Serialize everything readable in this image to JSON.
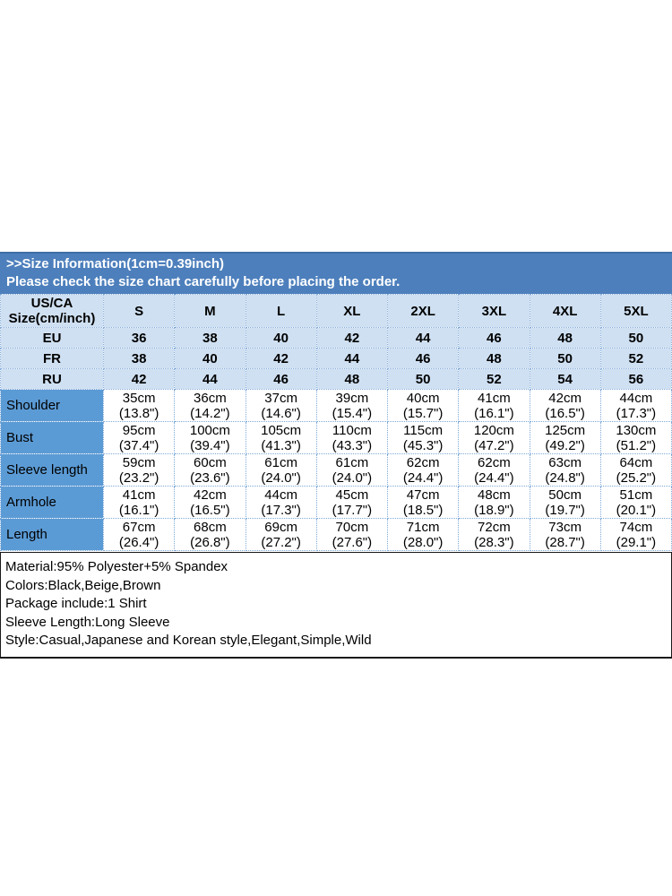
{
  "header": {
    "line1": ">>Size Information(1cm=0.39inch)",
    "line2": "Please check the size chart carefully before placing the order.",
    "bg_color": "#4d7fbc",
    "text_color": "#ffffff"
  },
  "size_table": {
    "corner_header": {
      "line1": "US/CA",
      "line2": "Size(cm/inch)"
    },
    "size_labels": [
      "S",
      "M",
      "L",
      "XL",
      "2XL",
      "3XL",
      "4XL",
      "5XL"
    ],
    "region_rows": [
      {
        "label": "EU",
        "values": [
          "36",
          "38",
          "40",
          "42",
          "44",
          "46",
          "48",
          "50"
        ]
      },
      {
        "label": "FR",
        "values": [
          "38",
          "40",
          "42",
          "44",
          "46",
          "48",
          "50",
          "52"
        ]
      },
      {
        "label": "RU",
        "values": [
          "42",
          "44",
          "46",
          "48",
          "50",
          "52",
          "54",
          "56"
        ]
      }
    ],
    "measurement_rows": [
      {
        "label": "Shoulder",
        "cells": [
          {
            "cm": "35cm",
            "inch": "(13.8\")"
          },
          {
            "cm": "36cm",
            "inch": "(14.2\")"
          },
          {
            "cm": "37cm",
            "inch": "(14.6\")"
          },
          {
            "cm": "39cm",
            "inch": "(15.4\")"
          },
          {
            "cm": "40cm",
            "inch": "(15.7\")"
          },
          {
            "cm": "41cm",
            "inch": "(16.1\")"
          },
          {
            "cm": "42cm",
            "inch": "(16.5\")"
          },
          {
            "cm": "44cm",
            "inch": "(17.3\")"
          }
        ]
      },
      {
        "label": "Bust",
        "cells": [
          {
            "cm": "95cm",
            "inch": "(37.4\")"
          },
          {
            "cm": "100cm",
            "inch": "(39.4\")"
          },
          {
            "cm": "105cm",
            "inch": "(41.3\")"
          },
          {
            "cm": "110cm",
            "inch": "(43.3\")"
          },
          {
            "cm": "115cm",
            "inch": "(45.3\")"
          },
          {
            "cm": "120cm",
            "inch": "(47.2\")"
          },
          {
            "cm": "125cm",
            "inch": "(49.2\")"
          },
          {
            "cm": "130cm",
            "inch": "(51.2\")"
          }
        ]
      },
      {
        "label": "Sleeve length",
        "cells": [
          {
            "cm": "59cm",
            "inch": "(23.2\")"
          },
          {
            "cm": "60cm",
            "inch": "(23.6\")"
          },
          {
            "cm": "61cm",
            "inch": "(24.0\")"
          },
          {
            "cm": "61cm",
            "inch": "(24.0\")"
          },
          {
            "cm": "62cm",
            "inch": "(24.4\")"
          },
          {
            "cm": "62cm",
            "inch": "(24.4\")"
          },
          {
            "cm": "63cm",
            "inch": "(24.8\")"
          },
          {
            "cm": "64cm",
            "inch": "(25.2\")"
          }
        ]
      },
      {
        "label": "Armhole",
        "cells": [
          {
            "cm": "41cm",
            "inch": "(16.1\")"
          },
          {
            "cm": "42cm",
            "inch": "(16.5\")"
          },
          {
            "cm": "44cm",
            "inch": "(17.3\")"
          },
          {
            "cm": "45cm",
            "inch": "(17.7\")"
          },
          {
            "cm": "47cm",
            "inch": "(18.5\")"
          },
          {
            "cm": "48cm",
            "inch": "(18.9\")"
          },
          {
            "cm": "50cm",
            "inch": "(19.7\")"
          },
          {
            "cm": "51cm",
            "inch": "(20.1\")"
          }
        ]
      },
      {
        "label": "Length",
        "cells": [
          {
            "cm": "67cm",
            "inch": "(26.4\")"
          },
          {
            "cm": "68cm",
            "inch": "(26.8\")"
          },
          {
            "cm": "69cm",
            "inch": "(27.2\")"
          },
          {
            "cm": "70cm",
            "inch": "(27.6\")"
          },
          {
            "cm": "71cm",
            "inch": "(28.0\")"
          },
          {
            "cm": "72cm",
            "inch": "(28.3\")"
          },
          {
            "cm": "73cm",
            "inch": "(28.7\")"
          },
          {
            "cm": "74cm",
            "inch": "(29.1\")"
          }
        ]
      }
    ],
    "colors": {
      "header_row_bg": "#cfe0f2",
      "label_column_bg": "#5b9bd5",
      "grid_border": "#7fa9d9",
      "cell_text": "#000000"
    }
  },
  "details": {
    "lines": [
      "Material:95% Polyester+5% Spandex",
      "Colors:Black,Beige,Brown",
      "Package include:1 Shirt",
      "Sleeve Length:Long Sleeve",
      "Style:Casual,Japanese and Korean style,Elegant,Simple,Wild"
    ]
  }
}
